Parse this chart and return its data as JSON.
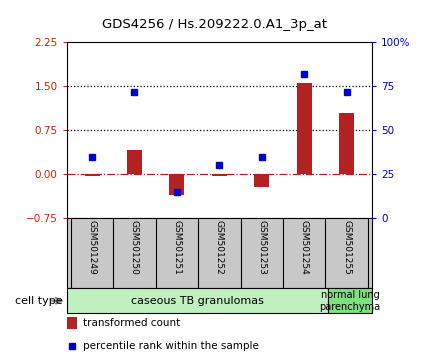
{
  "title": "GDS4256 / Hs.209222.0.A1_3p_at",
  "samples": [
    "GSM501249",
    "GSM501250",
    "GSM501251",
    "GSM501252",
    "GSM501253",
    "GSM501254",
    "GSM501255"
  ],
  "transformed_count": [
    -0.03,
    0.42,
    -0.35,
    -0.03,
    -0.22,
    1.55,
    1.05
  ],
  "percentile_rank": [
    35,
    72,
    15,
    30,
    35,
    82,
    72
  ],
  "ylim_left": [
    -0.75,
    2.25
  ],
  "ylim_right": [
    0,
    100
  ],
  "yticks_left": [
    -0.75,
    0,
    0.75,
    1.5,
    2.25
  ],
  "yticks_right": [
    0,
    25,
    50,
    75,
    100
  ],
  "bar_color": "#b22222",
  "dot_color": "#0000cc",
  "cell_type_group1_label": "caseous TB granulomas",
  "cell_type_group1_color": "#c0f0c0",
  "cell_type_group1_count": 6,
  "cell_type_group2_label": "normal lung\nparenchyma",
  "cell_type_group2_color": "#80e080",
  "cell_type_group2_count": 1,
  "legend_bar_label": "transformed count",
  "legend_dot_label": "percentile rank within the sample",
  "cell_type_label": "cell type",
  "background_color": "#ffffff",
  "plot_bg_color": "#ffffff",
  "tick_label_color_left": "#cc2200",
  "tick_label_color_right": "#0000cc",
  "sample_bg_color": "#c8c8c8",
  "bar_width": 0.35
}
